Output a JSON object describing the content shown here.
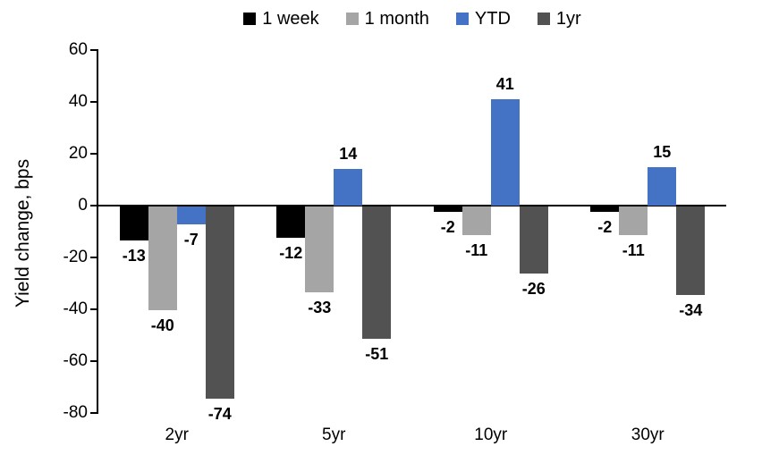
{
  "chart_data": {
    "type": "bar",
    "title": "",
    "ylabel": "Yield change, bps",
    "xlabel": "",
    "categories": [
      "2yr",
      "5yr",
      "10yr",
      "30yr"
    ],
    "series": [
      {
        "name": "1 week",
        "color": "#000000",
        "values": [
          -13,
          -12,
          -2,
          -2
        ]
      },
      {
        "name": "1 month",
        "color": "#A5A5A5",
        "values": [
          -40,
          -33,
          -11,
          -11
        ]
      },
      {
        "name": "YTD",
        "color": "#4472C4",
        "values": [
          -7,
          14,
          41,
          15
        ]
      },
      {
        "name": "1yr",
        "color": "#525252",
        "values": [
          -74,
          -51,
          -26,
          -34
        ]
      }
    ],
    "yticks": [
      60,
      40,
      20,
      0,
      -20,
      -40,
      -60,
      -80
    ],
    "ylim": [
      -80,
      60
    ],
    "grid": false,
    "legend_position": "top",
    "data_labels": true
  }
}
